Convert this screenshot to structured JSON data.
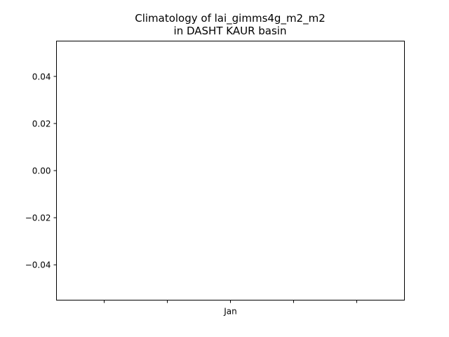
{
  "chart_data": {
    "type": "line",
    "title_lines": [
      "Climatology of lai_gimms4g_m2_m2",
      "in DASHT KAUR basin"
    ],
    "xlabel": "",
    "ylabel": "",
    "x_ticks": [
      "",
      "",
      "Jan",
      "",
      ""
    ],
    "y_ticks": [
      "0.04",
      "0.02",
      "0.00",
      "−0.02",
      "−0.04"
    ],
    "y_tick_values": [
      0.04,
      0.02,
      0.0,
      -0.02,
      -0.04
    ],
    "ylim": [
      -0.055,
      0.055
    ],
    "grid": false,
    "series": [
      {
        "name": "lai_gimms4g_m2_m2",
        "x": [],
        "y": []
      }
    ]
  }
}
